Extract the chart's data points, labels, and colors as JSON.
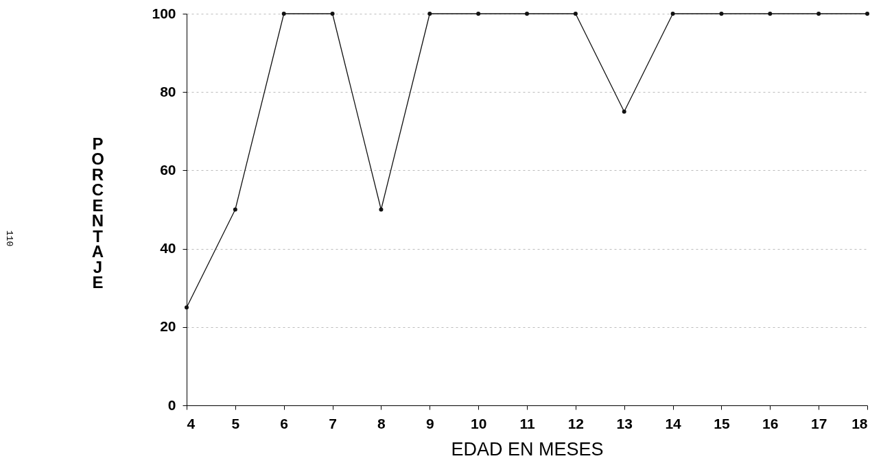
{
  "chart_data": {
    "type": "line",
    "xlabel": "EDAD EN MESES",
    "ylabel": "PORCENTAJE",
    "x": [
      4,
      5,
      6,
      7,
      8,
      9,
      10,
      11,
      12,
      13,
      14,
      15,
      16,
      17,
      18
    ],
    "series": [
      {
        "color": "#111111",
        "values": [
          25,
          50,
          100,
          100,
          50,
          100,
          100,
          100,
          100,
          75,
          100,
          100,
          100,
          100,
          100
        ]
      }
    ],
    "xlim": [
      4,
      18
    ],
    "xticks": [
      4,
      5,
      6,
      7,
      8,
      9,
      10,
      11,
      12,
      13,
      14,
      15,
      16,
      17,
      18
    ],
    "ylim": [
      0,
      100
    ],
    "yticks": [
      0,
      20,
      40,
      60,
      80,
      100
    ],
    "grid": "y",
    "marker": "circle",
    "line_style": "solid",
    "annotations": [
      "110"
    ]
  }
}
